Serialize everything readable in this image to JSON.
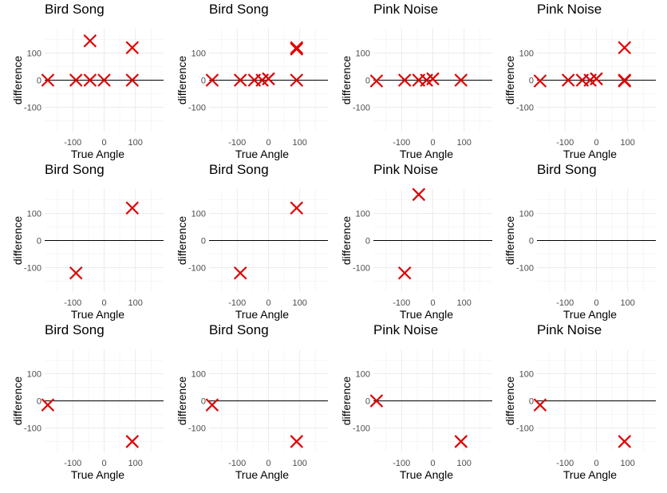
{
  "chart_data": [
    {
      "type": "scatter",
      "title": "Bird Song",
      "xlabel": "True Angle",
      "ylabel": "difference",
      "xlim": [
        -190,
        190
      ],
      "ylim": [
        -190,
        190
      ],
      "xticks": [
        -100,
        0,
        100
      ],
      "yticks": [
        -100,
        0,
        100
      ],
      "grid": true,
      "marker": "x",
      "color": "#e00000",
      "zero_line": true,
      "points": [
        {
          "x": -180,
          "y": 0
        },
        {
          "x": -90,
          "y": 0
        },
        {
          "x": -45,
          "y": 145
        },
        {
          "x": -45,
          "y": 0
        },
        {
          "x": 0,
          "y": 0
        },
        {
          "x": 90,
          "y": 120
        },
        {
          "x": 90,
          "y": 0
        }
      ]
    },
    {
      "type": "scatter",
      "title": "Bird Song",
      "xlabel": "True Angle",
      "ylabel": "difference",
      "xlim": [
        -190,
        190
      ],
      "ylim": [
        -190,
        190
      ],
      "xticks": [
        -100,
        0,
        100
      ],
      "yticks": [
        -100,
        0,
        100
      ],
      "grid": true,
      "marker": "x",
      "color": "#e00000",
      "zero_line": true,
      "points": [
        {
          "x": -180,
          "y": 0
        },
        {
          "x": -90,
          "y": 0
        },
        {
          "x": -45,
          "y": 0
        },
        {
          "x": -20,
          "y": 0
        },
        {
          "x": 0,
          "y": 5
        },
        {
          "x": 90,
          "y": 120
        },
        {
          "x": 90,
          "y": 115
        },
        {
          "x": 90,
          "y": 0
        }
      ]
    },
    {
      "type": "scatter",
      "title": "Pink Noise",
      "xlabel": "True Angle",
      "ylabel": "difference",
      "xlim": [
        -190,
        190
      ],
      "ylim": [
        -190,
        190
      ],
      "xticks": [
        -100,
        0,
        100
      ],
      "yticks": [
        -100,
        0,
        100
      ],
      "grid": true,
      "marker": "x",
      "color": "#e00000",
      "zero_line": true,
      "points": [
        {
          "x": -180,
          "y": -3
        },
        {
          "x": -90,
          "y": 0
        },
        {
          "x": -45,
          "y": 0
        },
        {
          "x": -20,
          "y": 0
        },
        {
          "x": 0,
          "y": 5
        },
        {
          "x": 90,
          "y": 0
        }
      ]
    },
    {
      "type": "scatter",
      "title": "Pink Noise",
      "xlabel": "True Angle",
      "ylabel": "difference",
      "xlim": [
        -190,
        190
      ],
      "ylim": [
        -190,
        190
      ],
      "xticks": [
        -100,
        0,
        100
      ],
      "yticks": [
        -100,
        0,
        100
      ],
      "grid": true,
      "marker": "x",
      "color": "#e00000",
      "zero_line": true,
      "points": [
        {
          "x": -180,
          "y": -3
        },
        {
          "x": -90,
          "y": 0
        },
        {
          "x": -45,
          "y": 0
        },
        {
          "x": -20,
          "y": 0
        },
        {
          "x": 0,
          "y": 5
        },
        {
          "x": 90,
          "y": 120
        },
        {
          "x": 90,
          "y": 0
        },
        {
          "x": 90,
          "y": -3
        }
      ]
    },
    {
      "type": "scatter",
      "title": "Bird Song",
      "xlabel": "True Angle",
      "ylabel": "difference",
      "xlim": [
        -190,
        190
      ],
      "ylim": [
        -190,
        190
      ],
      "xticks": [
        -100,
        0,
        100
      ],
      "yticks": [
        -100,
        0,
        100
      ],
      "grid": true,
      "marker": "x",
      "color": "#e00000",
      "zero_line": true,
      "points": [
        {
          "x": -90,
          "y": -120
        },
        {
          "x": 90,
          "y": 120
        }
      ]
    },
    {
      "type": "scatter",
      "title": "Bird Song",
      "xlabel": "True Angle",
      "ylabel": "difference",
      "xlim": [
        -190,
        190
      ],
      "ylim": [
        -190,
        190
      ],
      "xticks": [
        -100,
        0,
        100
      ],
      "yticks": [
        -100,
        0,
        100
      ],
      "grid": true,
      "marker": "x",
      "color": "#e00000",
      "zero_line": true,
      "points": [
        {
          "x": -90,
          "y": -120
        },
        {
          "x": 90,
          "y": 120
        }
      ]
    },
    {
      "type": "scatter",
      "title": "Pink Noise",
      "xlabel": "True Angle",
      "ylabel": "difference",
      "xlim": [
        -190,
        190
      ],
      "ylim": [
        -190,
        190
      ],
      "xticks": [
        -100,
        0,
        100
      ],
      "yticks": [
        -100,
        0,
        100
      ],
      "grid": true,
      "marker": "x",
      "color": "#e00000",
      "zero_line": true,
      "points": [
        {
          "x": -45,
          "y": 170
        },
        {
          "x": -90,
          "y": -120
        }
      ]
    },
    {
      "type": "scatter",
      "title": "Bird Song",
      "xlabel": "True Angle",
      "ylabel": "difference",
      "xlim": [
        -190,
        190
      ],
      "ylim": [
        -190,
        190
      ],
      "xticks": [
        -100,
        0,
        100
      ],
      "yticks": [
        -100,
        0,
        100
      ],
      "grid": true,
      "marker": "x",
      "color": "#e00000",
      "zero_line": true,
      "points": []
    },
    {
      "type": "scatter",
      "title": "Bird Song",
      "xlabel": "True Angle",
      "ylabel": "difference",
      "xlim": [
        -190,
        190
      ],
      "ylim": [
        -190,
        190
      ],
      "xticks": [
        -100,
        0,
        100
      ],
      "yticks": [
        -100,
        0,
        100
      ],
      "grid": true,
      "marker": "x",
      "color": "#e00000",
      "zero_line": true,
      "points": [
        {
          "x": -180,
          "y": -15
        },
        {
          "x": 90,
          "y": -150
        }
      ]
    },
    {
      "type": "scatter",
      "title": "Bird Song",
      "xlabel": "True Angle",
      "ylabel": "difference",
      "xlim": [
        -190,
        190
      ],
      "ylim": [
        -190,
        190
      ],
      "xticks": [
        -100,
        0,
        100
      ],
      "yticks": [
        -100,
        0,
        100
      ],
      "grid": true,
      "marker": "x",
      "color": "#e00000",
      "zero_line": true,
      "points": [
        {
          "x": -180,
          "y": -15
        },
        {
          "x": 90,
          "y": -150
        }
      ]
    },
    {
      "type": "scatter",
      "title": "Pink Noise",
      "xlabel": "True Angle",
      "ylabel": "difference",
      "xlim": [
        -190,
        190
      ],
      "ylim": [
        -190,
        190
      ],
      "xticks": [
        -100,
        0,
        100
      ],
      "yticks": [
        -100,
        0,
        100
      ],
      "grid": true,
      "marker": "x",
      "color": "#e00000",
      "zero_line": true,
      "points": [
        {
          "x": -180,
          "y": 0
        },
        {
          "x": 90,
          "y": -150
        }
      ]
    },
    {
      "type": "scatter",
      "title": "Pink Noise",
      "xlabel": "True Angle",
      "ylabel": "difference",
      "xlim": [
        -190,
        190
      ],
      "ylim": [
        -190,
        190
      ],
      "xticks": [
        -100,
        0,
        100
      ],
      "yticks": [
        -100,
        0,
        100
      ],
      "grid": true,
      "marker": "x",
      "color": "#e00000",
      "zero_line": true,
      "points": [
        {
          "x": -180,
          "y": -15
        },
        {
          "x": 90,
          "y": -150
        }
      ]
    }
  ]
}
